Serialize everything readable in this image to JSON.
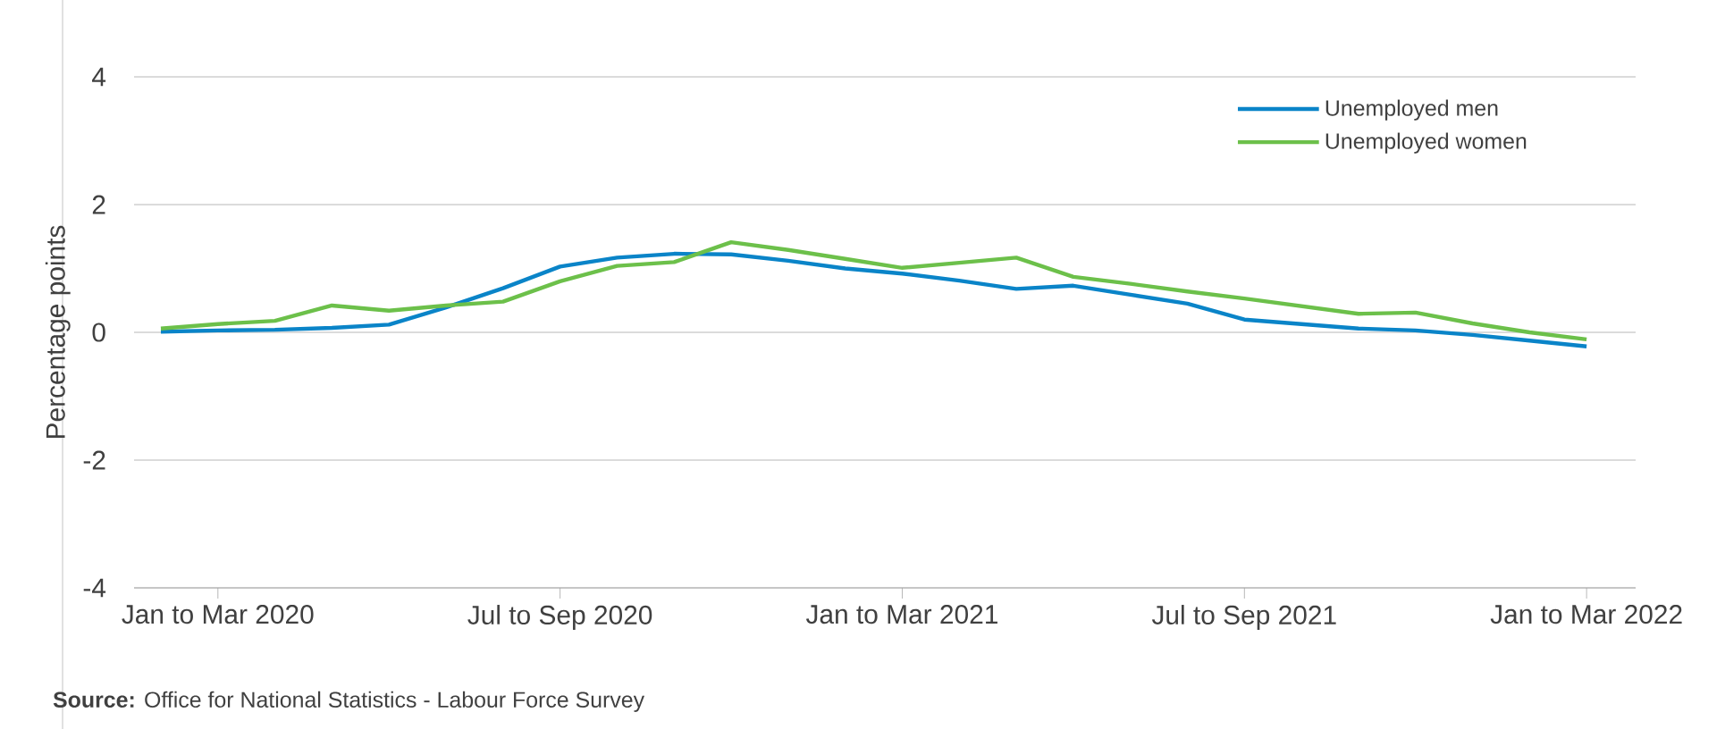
{
  "chart_data": {
    "type": "line",
    "ylabel": "Percentage points",
    "categories": [
      null,
      "Jan to Mar 2020",
      null,
      null,
      null,
      null,
      null,
      "Jul to Sep 2020",
      null,
      null,
      null,
      null,
      null,
      "Jan to Mar 2021",
      null,
      null,
      null,
      null,
      null,
      "Jul to Sep 2021",
      null,
      null,
      null,
      null,
      null,
      "Jan to Mar 2022"
    ],
    "series": [
      {
        "name": "Unemployed men",
        "color": "#0a84c8",
        "values": [
          0.01,
          0.03,
          0.04,
          0.07,
          0.12,
          0.39,
          0.69,
          1.03,
          1.17,
          1.23,
          1.22,
          1.12,
          1.0,
          0.92,
          0.81,
          0.68,
          0.73,
          0.59,
          0.45,
          0.2,
          0.13,
          0.06,
          0.03,
          -0.04,
          -0.13,
          -0.22
        ]
      },
      {
        "name": "Unemployed women",
        "color": "#6cc04a",
        "values": [
          0.06,
          0.13,
          0.18,
          0.42,
          0.34,
          0.42,
          0.48,
          0.8,
          1.04,
          1.1,
          1.41,
          1.29,
          1.15,
          1.01,
          1.09,
          1.17,
          0.87,
          0.76,
          0.64,
          0.53,
          0.41,
          0.29,
          0.31,
          0.14,
          0.0,
          -0.11
        ]
      }
    ],
    "ylim": [
      -4,
      4
    ],
    "yticks": [
      -4,
      -2,
      0,
      2,
      4
    ],
    "grid": "y",
    "legend": "top right",
    "annotations": [
      "**Source:** Office for National Statistics - Labour Force Survey"
    ]
  }
}
